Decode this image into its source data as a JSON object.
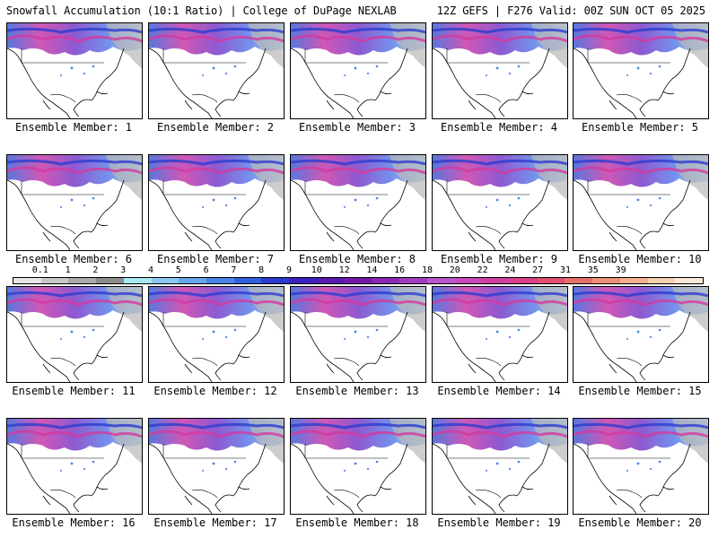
{
  "header": {
    "left": "Snowfall Accumulation (10:1 Ratio) | College of DuPage NEXLAB",
    "right": "12Z GEFS | F276 Valid: 00Z SUN OCT 05 2025"
  },
  "members": [
    {
      "label": "Ensemble Member: 1"
    },
    {
      "label": "Ensemble Member: 2"
    },
    {
      "label": "Ensemble Member: 3"
    },
    {
      "label": "Ensemble Member: 4"
    },
    {
      "label": "Ensemble Member: 5"
    },
    {
      "label": "Ensemble Member: 6"
    },
    {
      "label": "Ensemble Member: 7"
    },
    {
      "label": "Ensemble Member: 8"
    },
    {
      "label": "Ensemble Member: 9"
    },
    {
      "label": "Ensemble Member: 10"
    },
    {
      "label": "Ensemble Member: 11"
    },
    {
      "label": "Ensemble Member: 12"
    },
    {
      "label": "Ensemble Member: 13"
    },
    {
      "label": "Ensemble Member: 14"
    },
    {
      "label": "Ensemble Member: 15"
    },
    {
      "label": "Ensemble Member: 16"
    },
    {
      "label": "Ensemble Member: 17"
    },
    {
      "label": "Ensemble Member: 18"
    },
    {
      "label": "Ensemble Member: 19"
    },
    {
      "label": "Ensemble Member: 20"
    }
  ],
  "colorscale": {
    "labels": [
      "0.1",
      "1",
      "2",
      "3",
      "4",
      "5",
      "6",
      "7",
      "8",
      "9",
      "10",
      "12",
      "14",
      "16",
      "18",
      "20",
      "22",
      "24",
      "27",
      "31",
      "35",
      "39"
    ],
    "colors": [
      "#e6e6e6",
      "#c8c8c8",
      "#aaaaaa",
      "#8c8c8c",
      "#a6e8f2",
      "#8cc8f0",
      "#6aa6ec",
      "#4a84e6",
      "#3060dc",
      "#2a3cd0",
      "#3a22c0",
      "#5a1ab0",
      "#7418a8",
      "#8a28b4",
      "#a03cc0",
      "#b858c8",
      "#c848b8",
      "#d040a0",
      "#d84088",
      "#e05070",
      "#e6706a",
      "#ec9076",
      "#f2b090",
      "#f6d0b0",
      "#fae8d8"
    ]
  }
}
